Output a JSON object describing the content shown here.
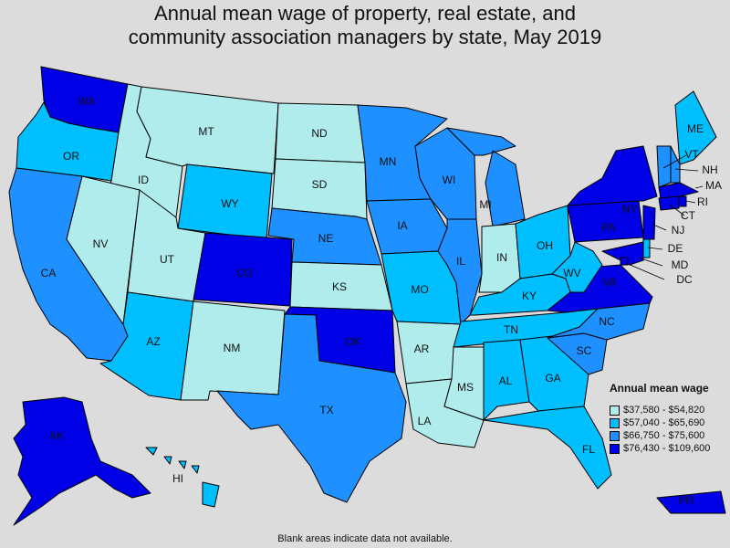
{
  "title_lines": [
    "Annual mean wage of property, real estate, and",
    "community association managers by state, May 2019"
  ],
  "legend": {
    "title": "Annual mean wage",
    "bins": [
      {
        "label": "$37,580 - $54,820",
        "color": "#b0ecec"
      },
      {
        "label": "$57,040 - $65,690",
        "color": "#00bfff"
      },
      {
        "label": "$66,750 - $75,600",
        "color": "#1e90ff"
      },
      {
        "label": "$76,430 - $109,600",
        "color": "#0000e6"
      }
    ]
  },
  "footnote": "Blank areas indicate data not available.",
  "states": [
    {
      "code": "WA",
      "bin": 3
    },
    {
      "code": "OR",
      "bin": 1
    },
    {
      "code": "CA",
      "bin": 2
    },
    {
      "code": "ID",
      "bin": 0
    },
    {
      "code": "NV",
      "bin": 0
    },
    {
      "code": "MT",
      "bin": 0
    },
    {
      "code": "WY",
      "bin": 1
    },
    {
      "code": "UT",
      "bin": 0
    },
    {
      "code": "AZ",
      "bin": 1
    },
    {
      "code": "CO",
      "bin": 3
    },
    {
      "code": "NM",
      "bin": 0
    },
    {
      "code": "ND",
      "bin": 0
    },
    {
      "code": "SD",
      "bin": 0
    },
    {
      "code": "NE",
      "bin": 2
    },
    {
      "code": "KS",
      "bin": 0
    },
    {
      "code": "OK",
      "bin": 3
    },
    {
      "code": "TX",
      "bin": 2
    },
    {
      "code": "MN",
      "bin": 2
    },
    {
      "code": "IA",
      "bin": 2
    },
    {
      "code": "MO",
      "bin": 1
    },
    {
      "code": "AR",
      "bin": 0
    },
    {
      "code": "LA",
      "bin": 0
    },
    {
      "code": "WI",
      "bin": 2
    },
    {
      "code": "IL",
      "bin": 2
    },
    {
      "code": "MI",
      "bin": 2
    },
    {
      "code": "IN",
      "bin": 0
    },
    {
      "code": "OH",
      "bin": 1
    },
    {
      "code": "KY",
      "bin": 1
    },
    {
      "code": "TN",
      "bin": 1
    },
    {
      "code": "MS",
      "bin": 0
    },
    {
      "code": "AL",
      "bin": 1
    },
    {
      "code": "GA",
      "bin": 1
    },
    {
      "code": "FL",
      "bin": 1
    },
    {
      "code": "SC",
      "bin": 2
    },
    {
      "code": "NC",
      "bin": 2
    },
    {
      "code": "VA",
      "bin": 3
    },
    {
      "code": "WV",
      "bin": 1
    },
    {
      "code": "PA",
      "bin": 3
    },
    {
      "code": "NY",
      "bin": 3
    },
    {
      "code": "ME",
      "bin": 1
    },
    {
      "code": "NH",
      "bin": 2
    },
    {
      "code": "VT",
      "bin": 2
    },
    {
      "code": "MA",
      "bin": 3
    },
    {
      "code": "RI",
      "bin": 3
    },
    {
      "code": "CT",
      "bin": 3
    },
    {
      "code": "NJ",
      "bin": 3
    },
    {
      "code": "DE",
      "bin": 1
    },
    {
      "code": "MD",
      "bin": 3
    },
    {
      "code": "DC",
      "bin": 3
    },
    {
      "code": "AK",
      "bin": 3
    },
    {
      "code": "HI",
      "bin": 1
    },
    {
      "code": "PR",
      "bin": 3
    }
  ]
}
